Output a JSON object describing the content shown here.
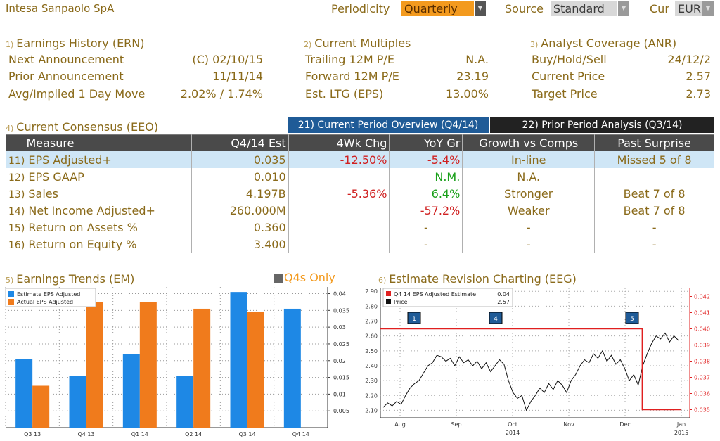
{
  "header": {
    "company": "Intesa Sanpaolo SpA",
    "periodicity_label": "Periodicity",
    "periodicity_value": "Quarterly",
    "source_label": "Source",
    "source_value": "Standard",
    "currency_label": "Cur",
    "currency_value": "EUR"
  },
  "earnings_history": {
    "num": "1)",
    "title": "Earnings History (ERN)",
    "rows": [
      {
        "label": "Next Announcement",
        "value": "(C)  02/10/15"
      },
      {
        "label": "Prior Announcement",
        "value": "11/11/14"
      },
      {
        "label": "Avg/Implied 1 Day Move",
        "value": "2.02% / 1.74%"
      }
    ]
  },
  "current_multiples": {
    "num": "2)",
    "title": "Current Multiples",
    "rows": [
      {
        "label": "Trailing 12M P/E",
        "value": "N.A."
      },
      {
        "label": "Forward 12M P/E",
        "value": "23.19"
      },
      {
        "label": "Est. LTG (EPS)",
        "value": "13.00%"
      }
    ]
  },
  "analyst_coverage": {
    "num": "3)",
    "title": "Analyst Coverage (ANR)",
    "rows": [
      {
        "label": "Buy/Hold/Sell",
        "value": "24/12/2"
      },
      {
        "label": "Current Price",
        "value": "2.57"
      },
      {
        "label": "Target Price",
        "value": "2.73"
      }
    ]
  },
  "consensus": {
    "num": "4)",
    "title": "Current Consensus (EEO)",
    "tab_current": "21) Current Period Overview (Q4/14)",
    "tab_prior": "22) Prior Period Analysis (Q3/14)",
    "headers": [
      "Measure",
      "Q4/14 Est",
      "4Wk Chg",
      "YoY Gr",
      "Growth vs Comps",
      "Past Surprise"
    ],
    "rows": [
      {
        "n": "11)",
        "measure": "EPS Adjusted+",
        "est": "0.035",
        "chg": "-12.50%",
        "yoy": "-5.4%",
        "comps": "In-line",
        "surprise": "Missed 5 of 8"
      },
      {
        "n": "12)",
        "measure": "EPS GAAP",
        "est": "0.010",
        "chg": "",
        "yoy": "N.M.",
        "comps": "N.A.",
        "surprise": ""
      },
      {
        "n": "13)",
        "measure": "Sales",
        "est": "4.197B",
        "chg": "-5.36%",
        "yoy": "6.4%",
        "comps": "Stronger",
        "surprise": "Beat 7 of 8"
      },
      {
        "n": "14)",
        "measure": "Net Income Adjusted+",
        "est": "260.000M",
        "chg": "",
        "yoy": "-57.2%",
        "comps": "Weaker",
        "surprise": "Beat 7 of 8"
      },
      {
        "n": "15)",
        "measure": "Return on Assets %",
        "est": "0.360",
        "chg": "",
        "yoy": "-",
        "comps": "-",
        "surprise": "-"
      },
      {
        "n": "16)",
        "measure": "Return on Equity %",
        "est": "3.400",
        "chg": "",
        "yoy": "-",
        "comps": "-",
        "surprise": "-"
      }
    ]
  },
  "trends": {
    "num": "5)",
    "title": "Earnings Trends (EM)",
    "toggle": "Q4s Only"
  },
  "revision": {
    "num": "6)",
    "title": "Estimate Revision Charting (EEG)"
  },
  "chart_data": [
    {
      "type": "bar",
      "categories": [
        "Q3 13",
        "Q4 13",
        "Q1 14",
        "Q2 14",
        "Q3 14",
        "Q4 14"
      ],
      "series": [
        {
          "name": "Estimate EPS Adjusted",
          "color": "#1e88e5",
          "values": [
            0.0205,
            0.0155,
            0.022,
            0.0155,
            0.0405,
            0.0355
          ]
        },
        {
          "name": "Actual EPS Adjusted",
          "color": "#f07b1c",
          "values": [
            0.0125,
            0.0375,
            0.0375,
            0.0355,
            0.0345,
            null
          ]
        }
      ],
      "ylim": [
        0,
        0.042
      ],
      "yticks": [
        "0.005",
        "0.01",
        "0.015",
        "0.02",
        "0.025",
        "0.03",
        "0.035",
        "0.04"
      ],
      "legend": "top-left",
      "grid": true
    },
    {
      "type": "line",
      "x_labels": [
        "Aug",
        "Sep",
        "Oct",
        "Nov",
        "Dec",
        "Jan"
      ],
      "year_labels": [
        "2014",
        "2015"
      ],
      "left_ticks": [
        "2.10",
        "2.20",
        "2.30",
        "2.40",
        "2.50",
        "2.60",
        "2.70",
        "2.80",
        "2.90"
      ],
      "right_ticks": [
        "0.035",
        "0.036",
        "0.037",
        "0.038",
        "0.039",
        "0.040",
        "0.041",
        "0.042"
      ],
      "legend": [
        {
          "name": "Q4 14 EPS Adjusted Estimate",
          "value": "0.04",
          "color": "#e02020"
        },
        {
          "name": "Price",
          "value": "2.57",
          "color": "#111111"
        }
      ],
      "event_markers": [
        "1",
        "4",
        "5"
      ],
      "estimate_steps": [
        [
          0,
          0.04
        ],
        [
          0.87,
          0.04
        ],
        [
          0.87,
          0.035
        ],
        [
          1.0,
          0.035
        ]
      ],
      "price": [
        2.12,
        2.15,
        2.13,
        2.16,
        2.14,
        2.2,
        2.25,
        2.28,
        2.3,
        2.35,
        2.4,
        2.42,
        2.47,
        2.46,
        2.43,
        2.45,
        2.4,
        2.46,
        2.42,
        2.44,
        2.4,
        2.43,
        2.38,
        2.42,
        2.36,
        2.4,
        2.44,
        2.41,
        2.3,
        2.22,
        2.18,
        2.2,
        2.1,
        2.16,
        2.2,
        2.25,
        2.22,
        2.28,
        2.24,
        2.3,
        2.27,
        2.22,
        2.3,
        2.34,
        2.4,
        2.44,
        2.42,
        2.48,
        2.45,
        2.5,
        2.43,
        2.47,
        2.41,
        2.44,
        2.38,
        2.3,
        2.34,
        2.27,
        2.4,
        2.48,
        2.55,
        2.6,
        2.58,
        2.62,
        2.56,
        2.6,
        2.57
      ],
      "ylim_left": [
        2.05,
        2.92
      ],
      "ylim_right": [
        0.0345,
        0.0425
      ],
      "grid": true
    }
  ]
}
